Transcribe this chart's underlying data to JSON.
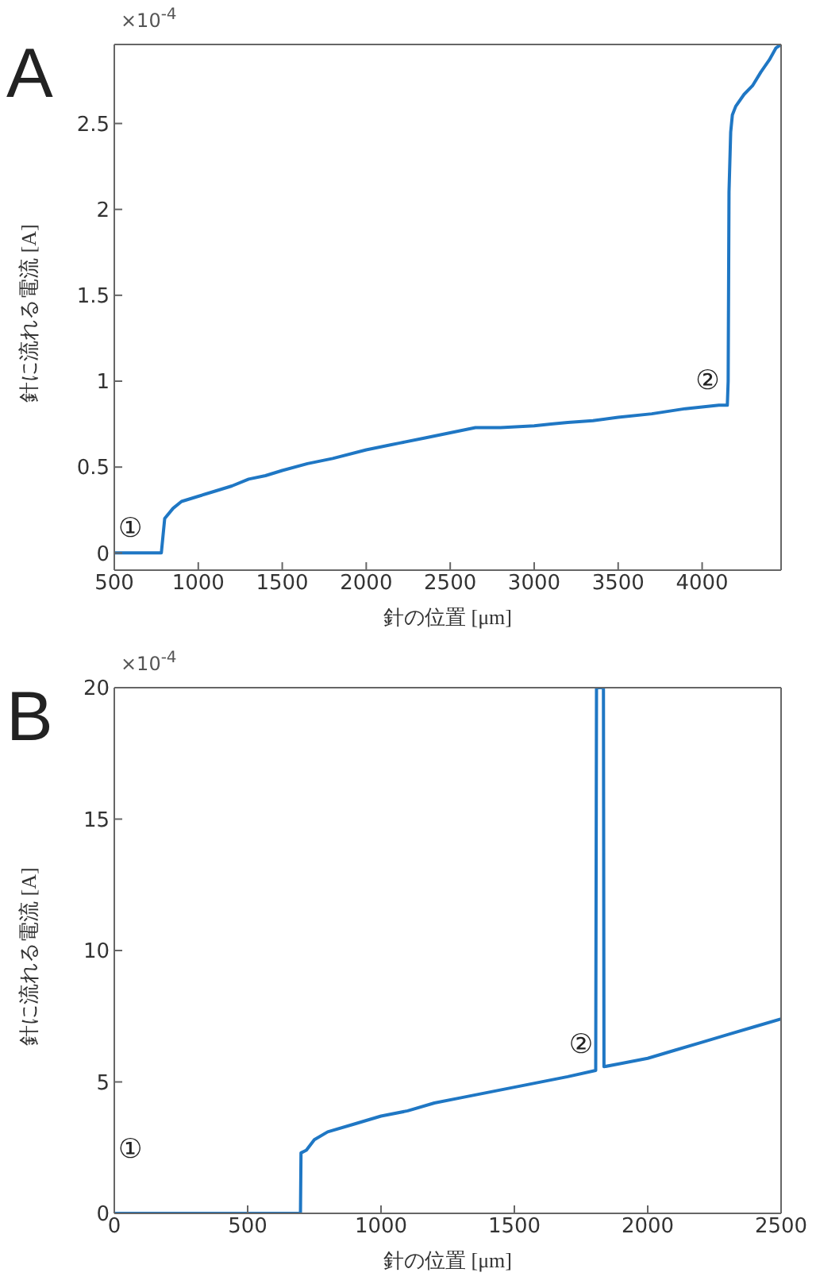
{
  "chart_data": [
    {
      "type": "line",
      "title": "A",
      "xlabel": "針の位置 [μm]",
      "ylabel": "針に流れる電流 [A]",
      "xlim": [
        500,
        4470
      ],
      "xticks": [
        500,
        1000,
        1500,
        2000,
        2500,
        3000,
        3500,
        4000
      ],
      "ylim": [
        -0.1,
        2.96
      ],
      "yticks": [
        0,
        0.5,
        1,
        1.5,
        2,
        2.5
      ],
      "legend": false,
      "marker": "none",
      "line_style": "solid",
      "annotations": [
        "×10$^{-4}$",
        "①",
        "②"
      ],
      "series": [
        {
          "color": "#1f77c4",
          "x": [
            500,
            780,
            790,
            800,
            850,
            900,
            1000,
            1100,
            1200,
            1300,
            1400,
            1500,
            1650,
            1800,
            2000,
            2150,
            2200,
            2350,
            2500,
            2650,
            2800,
            3000,
            3100,
            3200,
            3350,
            3500,
            3700,
            3900,
            4000,
            4100,
            4150,
            4155,
            4160,
            4170,
            4180,
            4200,
            4250,
            4300,
            4350,
            4400,
            4440,
            4470
          ],
          "values": [
            0,
            0,
            0.1,
            0.2,
            0.26,
            0.3,
            0.33,
            0.36,
            0.39,
            0.43,
            0.45,
            0.48,
            0.52,
            0.55,
            0.6,
            0.63,
            0.64,
            0.67,
            0.7,
            0.73,
            0.73,
            0.74,
            0.75,
            0.76,
            0.77,
            0.79,
            0.81,
            0.84,
            0.85,
            0.86,
            0.86,
            1.0,
            2.1,
            2.45,
            2.55,
            2.6,
            2.67,
            2.72,
            2.8,
            2.87,
            2.94,
            2.96
          ]
        }
      ]
    },
    {
      "type": "line",
      "title": "B",
      "xlabel": "針の位置 [μm]",
      "ylabel": "針に流れる電流 [A]",
      "xlim": [
        0,
        2500
      ],
      "xticks": [
        0,
        500,
        1000,
        1500,
        2000,
        2500
      ],
      "ylim": [
        0,
        20
      ],
      "yticks": [
        0,
        5,
        10,
        15,
        20
      ],
      "legend": false,
      "marker": "none",
      "line_style": "solid",
      "annotations": [
        "×10$^{-4}$",
        "①",
        "②"
      ],
      "series": [
        {
          "color": "#1f77c4",
          "x": [
            0,
            698,
            700,
            720,
            750,
            800,
            900,
            1000,
            1100,
            1200,
            1300,
            1500,
            1700,
            1805,
            1808,
            1834,
            1836,
            1900,
            2000,
            2100,
            2200,
            2300,
            2400,
            2500
          ],
          "values": [
            0,
            0,
            2.3,
            2.4,
            2.8,
            3.1,
            3.4,
            3.7,
            3.9,
            4.2,
            4.4,
            4.8,
            5.2,
            5.44,
            20,
            20,
            5.58,
            5.7,
            5.9,
            6.2,
            6.5,
            6.8,
            7.1,
            7.4
          ]
        }
      ]
    }
  ]
}
